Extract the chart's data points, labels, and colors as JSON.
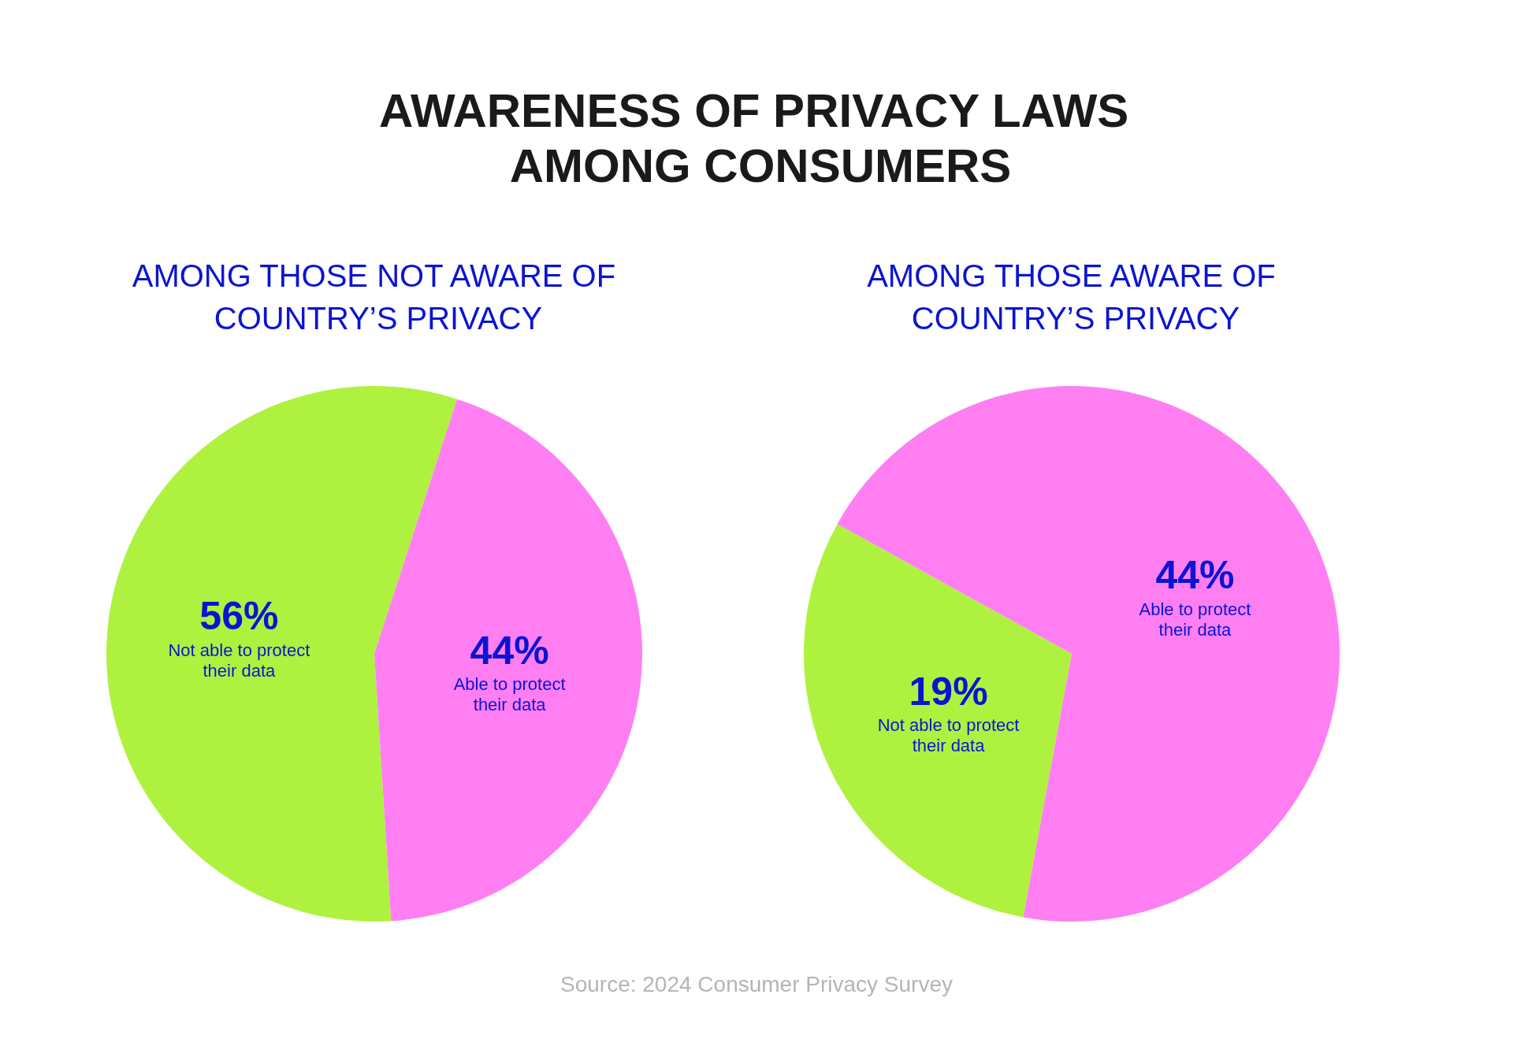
{
  "chart_data": [
    {
      "type": "pie",
      "title": "AWARENESS OF PRIVACY LAWS AMONG CONSUMERS",
      "subtitle": "AMONG THOSE NOT AWARE OF COUNTRY’S PRIVACY",
      "categories": [
        "Not able to protect their data",
        "Able to protect their data"
      ],
      "values": [
        56,
        44
      ],
      "value_labels": [
        "56%",
        "44%"
      ],
      "colors": [
        "#aef23f",
        "#ff7ff3"
      ],
      "legend": false
    },
    {
      "type": "pie",
      "subtitle": "AMONG THOSE AWARE OF COUNTRY’S PRIVACY",
      "categories": [
        "Not able to protect their data",
        "Able to protect their data"
      ],
      "values": [
        19,
        44
      ],
      "value_labels": [
        "19%",
        "44%"
      ],
      "colors": [
        "#aef23f",
        "#ff7ff3"
      ],
      "legend": false,
      "annotations": [
        "Source: 2024 Consumer Privacy Survey"
      ]
    }
  ]
}
